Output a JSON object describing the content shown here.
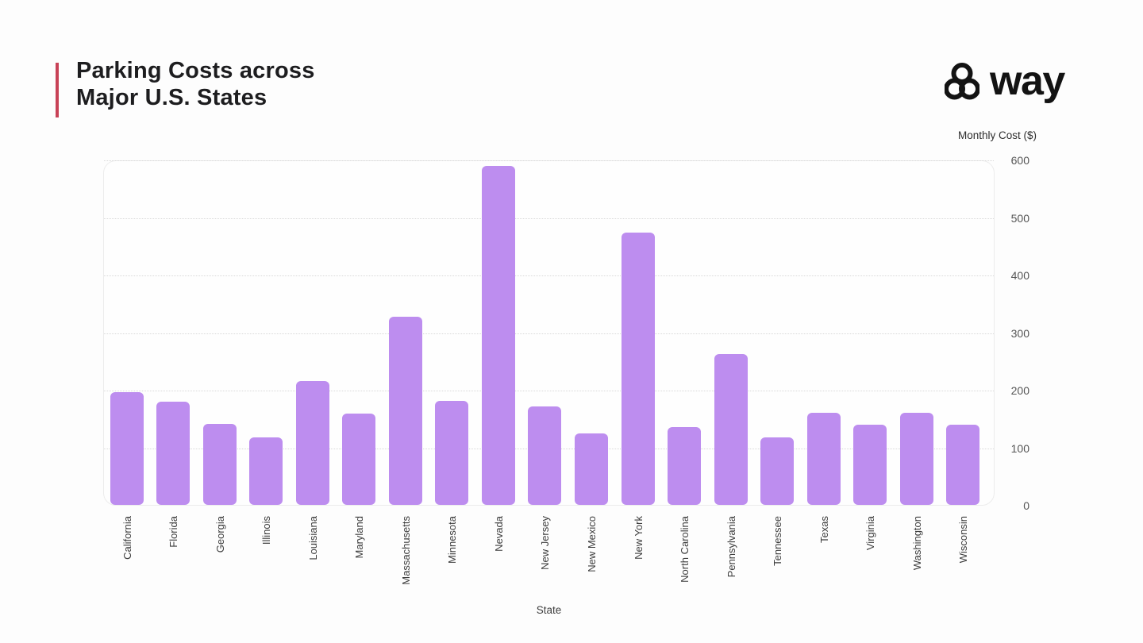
{
  "header": {
    "title_lines": [
      "Parking Costs across",
      "Major U.S. States"
    ],
    "accent_color": "#c84257"
  },
  "logo": {
    "text": "way",
    "mark_icon": "three-ring-knot",
    "color": "#131313"
  },
  "chart_data": {
    "type": "bar",
    "title": "Parking Costs across Major U.S. States",
    "xlabel": "State",
    "ylabel": "Monthly Cost ($)",
    "ylim": [
      0,
      600
    ],
    "yticks": [
      0,
      100,
      200,
      300,
      400,
      500,
      600
    ],
    "grid": "dotted-horizontal",
    "legend": "none",
    "bar_color": "#bd8def",
    "categories": [
      "California",
      "Florida",
      "Georgia",
      "Illinois",
      "Louisiana",
      "Maryland",
      "Massachusetts",
      "Minnesota",
      "Nevada",
      "New Jersey",
      "New Mexico",
      "New York",
      "North Carolina",
      "Pennsylvania",
      "Tennessee",
      "Texas",
      "Virginia",
      "Washington",
      "Wisconsin"
    ],
    "values": [
      197,
      181,
      142,
      119,
      216,
      160,
      328,
      182,
      590,
      173,
      125,
      474,
      137,
      264,
      118,
      162,
      141,
      162,
      141
    ]
  }
}
